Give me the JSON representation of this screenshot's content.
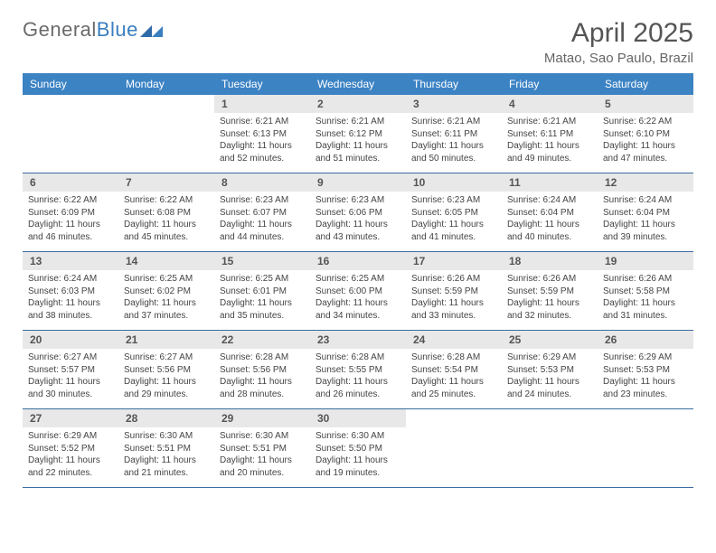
{
  "logo": {
    "text1": "General",
    "text2": "Blue"
  },
  "header": {
    "title": "April 2025",
    "location": "Matao, Sao Paulo, Brazil"
  },
  "colors": {
    "header_bg": "#3c83c4",
    "header_text": "#ffffff",
    "daynum_bg": "#e8e8e8",
    "week_border": "#3c6ca0",
    "logo_gray": "#6b6b6b",
    "logo_blue": "#3a7ebf"
  },
  "weekdays": [
    "Sunday",
    "Monday",
    "Tuesday",
    "Wednesday",
    "Thursday",
    "Friday",
    "Saturday"
  ],
  "weeks": [
    [
      {
        "n": "",
        "sunrise": "",
        "sunset": "",
        "daylight": ""
      },
      {
        "n": "",
        "sunrise": "",
        "sunset": "",
        "daylight": ""
      },
      {
        "n": "1",
        "sunrise": "Sunrise: 6:21 AM",
        "sunset": "Sunset: 6:13 PM",
        "daylight": "Daylight: 11 hours and 52 minutes."
      },
      {
        "n": "2",
        "sunrise": "Sunrise: 6:21 AM",
        "sunset": "Sunset: 6:12 PM",
        "daylight": "Daylight: 11 hours and 51 minutes."
      },
      {
        "n": "3",
        "sunrise": "Sunrise: 6:21 AM",
        "sunset": "Sunset: 6:11 PM",
        "daylight": "Daylight: 11 hours and 50 minutes."
      },
      {
        "n": "4",
        "sunrise": "Sunrise: 6:21 AM",
        "sunset": "Sunset: 6:11 PM",
        "daylight": "Daylight: 11 hours and 49 minutes."
      },
      {
        "n": "5",
        "sunrise": "Sunrise: 6:22 AM",
        "sunset": "Sunset: 6:10 PM",
        "daylight": "Daylight: 11 hours and 47 minutes."
      }
    ],
    [
      {
        "n": "6",
        "sunrise": "Sunrise: 6:22 AM",
        "sunset": "Sunset: 6:09 PM",
        "daylight": "Daylight: 11 hours and 46 minutes."
      },
      {
        "n": "7",
        "sunrise": "Sunrise: 6:22 AM",
        "sunset": "Sunset: 6:08 PM",
        "daylight": "Daylight: 11 hours and 45 minutes."
      },
      {
        "n": "8",
        "sunrise": "Sunrise: 6:23 AM",
        "sunset": "Sunset: 6:07 PM",
        "daylight": "Daylight: 11 hours and 44 minutes."
      },
      {
        "n": "9",
        "sunrise": "Sunrise: 6:23 AM",
        "sunset": "Sunset: 6:06 PM",
        "daylight": "Daylight: 11 hours and 43 minutes."
      },
      {
        "n": "10",
        "sunrise": "Sunrise: 6:23 AM",
        "sunset": "Sunset: 6:05 PM",
        "daylight": "Daylight: 11 hours and 41 minutes."
      },
      {
        "n": "11",
        "sunrise": "Sunrise: 6:24 AM",
        "sunset": "Sunset: 6:04 PM",
        "daylight": "Daylight: 11 hours and 40 minutes."
      },
      {
        "n": "12",
        "sunrise": "Sunrise: 6:24 AM",
        "sunset": "Sunset: 6:04 PM",
        "daylight": "Daylight: 11 hours and 39 minutes."
      }
    ],
    [
      {
        "n": "13",
        "sunrise": "Sunrise: 6:24 AM",
        "sunset": "Sunset: 6:03 PM",
        "daylight": "Daylight: 11 hours and 38 minutes."
      },
      {
        "n": "14",
        "sunrise": "Sunrise: 6:25 AM",
        "sunset": "Sunset: 6:02 PM",
        "daylight": "Daylight: 11 hours and 37 minutes."
      },
      {
        "n": "15",
        "sunrise": "Sunrise: 6:25 AM",
        "sunset": "Sunset: 6:01 PM",
        "daylight": "Daylight: 11 hours and 35 minutes."
      },
      {
        "n": "16",
        "sunrise": "Sunrise: 6:25 AM",
        "sunset": "Sunset: 6:00 PM",
        "daylight": "Daylight: 11 hours and 34 minutes."
      },
      {
        "n": "17",
        "sunrise": "Sunrise: 6:26 AM",
        "sunset": "Sunset: 5:59 PM",
        "daylight": "Daylight: 11 hours and 33 minutes."
      },
      {
        "n": "18",
        "sunrise": "Sunrise: 6:26 AM",
        "sunset": "Sunset: 5:59 PM",
        "daylight": "Daylight: 11 hours and 32 minutes."
      },
      {
        "n": "19",
        "sunrise": "Sunrise: 6:26 AM",
        "sunset": "Sunset: 5:58 PM",
        "daylight": "Daylight: 11 hours and 31 minutes."
      }
    ],
    [
      {
        "n": "20",
        "sunrise": "Sunrise: 6:27 AM",
        "sunset": "Sunset: 5:57 PM",
        "daylight": "Daylight: 11 hours and 30 minutes."
      },
      {
        "n": "21",
        "sunrise": "Sunrise: 6:27 AM",
        "sunset": "Sunset: 5:56 PM",
        "daylight": "Daylight: 11 hours and 29 minutes."
      },
      {
        "n": "22",
        "sunrise": "Sunrise: 6:28 AM",
        "sunset": "Sunset: 5:56 PM",
        "daylight": "Daylight: 11 hours and 28 minutes."
      },
      {
        "n": "23",
        "sunrise": "Sunrise: 6:28 AM",
        "sunset": "Sunset: 5:55 PM",
        "daylight": "Daylight: 11 hours and 26 minutes."
      },
      {
        "n": "24",
        "sunrise": "Sunrise: 6:28 AM",
        "sunset": "Sunset: 5:54 PM",
        "daylight": "Daylight: 11 hours and 25 minutes."
      },
      {
        "n": "25",
        "sunrise": "Sunrise: 6:29 AM",
        "sunset": "Sunset: 5:53 PM",
        "daylight": "Daylight: 11 hours and 24 minutes."
      },
      {
        "n": "26",
        "sunrise": "Sunrise: 6:29 AM",
        "sunset": "Sunset: 5:53 PM",
        "daylight": "Daylight: 11 hours and 23 minutes."
      }
    ],
    [
      {
        "n": "27",
        "sunrise": "Sunrise: 6:29 AM",
        "sunset": "Sunset: 5:52 PM",
        "daylight": "Daylight: 11 hours and 22 minutes."
      },
      {
        "n": "28",
        "sunrise": "Sunrise: 6:30 AM",
        "sunset": "Sunset: 5:51 PM",
        "daylight": "Daylight: 11 hours and 21 minutes."
      },
      {
        "n": "29",
        "sunrise": "Sunrise: 6:30 AM",
        "sunset": "Sunset: 5:51 PM",
        "daylight": "Daylight: 11 hours and 20 minutes."
      },
      {
        "n": "30",
        "sunrise": "Sunrise: 6:30 AM",
        "sunset": "Sunset: 5:50 PM",
        "daylight": "Daylight: 11 hours and 19 minutes."
      },
      {
        "n": "",
        "sunrise": "",
        "sunset": "",
        "daylight": ""
      },
      {
        "n": "",
        "sunrise": "",
        "sunset": "",
        "daylight": ""
      },
      {
        "n": "",
        "sunrise": "",
        "sunset": "",
        "daylight": ""
      }
    ]
  ]
}
